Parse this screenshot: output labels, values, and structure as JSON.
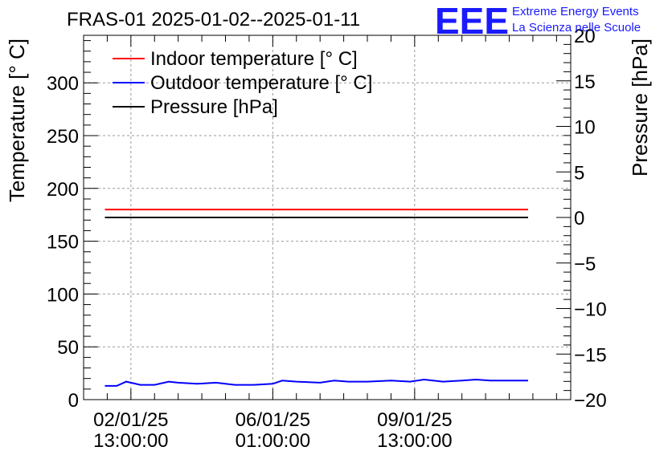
{
  "chart_data": {
    "type": "line",
    "title": "FRAS-01 2025-01-02--2025-01-11",
    "logo": {
      "mark": "EEE",
      "line1": "Extreme Energy Events",
      "line2": "La Scienza nelle Scuole"
    },
    "ylabel": "Temperature [° C]",
    "y2label": "Pressure [hPa]",
    "ylim": [
      0,
      345
    ],
    "y2lim": [
      -20,
      20
    ],
    "yticks": [
      0,
      50,
      100,
      150,
      200,
      250,
      300
    ],
    "y2ticks": [
      -20,
      -15,
      -10,
      -5,
      0,
      5,
      10,
      15,
      20
    ],
    "ytick_labels": [
      "0",
      "50",
      "100",
      "150",
      "200",
      "250",
      "300"
    ],
    "y2tick_labels": [
      "−20",
      "−15",
      "−10",
      "−5",
      "0",
      "5",
      "10",
      "15",
      "20"
    ],
    "xlim_days": [
      0,
      10.3
    ],
    "xticks": [
      {
        "day": 1.0,
        "date": "02/01/25",
        "time": "13:00:00"
      },
      {
        "day": 4.0,
        "date": "06/01/25",
        "time": "01:00:00"
      },
      {
        "day": 7.0,
        "date": "09/01/25",
        "time": "13:00:00"
      }
    ],
    "grid": true,
    "legend_position": "top-left",
    "series": [
      {
        "name": "Indoor temperature [° C]",
        "color": "#ff0000",
        "axis": "left",
        "x": [
          0.45,
          9.4
        ],
        "y": [
          180,
          180
        ]
      },
      {
        "name": "Outdoor temperature [° C]",
        "color": "#0000ff",
        "axis": "left",
        "x": [
          0.45,
          0.7,
          0.9,
          1.0,
          1.2,
          1.5,
          1.8,
          2.0,
          2.4,
          2.8,
          3.2,
          3.6,
          4.0,
          4.2,
          4.5,
          5.0,
          5.3,
          5.6,
          6.0,
          6.5,
          6.9,
          7.2,
          7.6,
          8.0,
          8.3,
          8.6,
          9.0,
          9.4
        ],
        "y": [
          13,
          13,
          17,
          16,
          14,
          14,
          17,
          16,
          15,
          16,
          14,
          14,
          15,
          18,
          17,
          16,
          18,
          17,
          17,
          18,
          17,
          19,
          17,
          18,
          19,
          18,
          18,
          18
        ]
      },
      {
        "name": "Pressure [hPa]",
        "color": "#000000",
        "axis": "right",
        "x": [
          0.45,
          9.4
        ],
        "y": [
          0,
          0
        ]
      }
    ]
  }
}
